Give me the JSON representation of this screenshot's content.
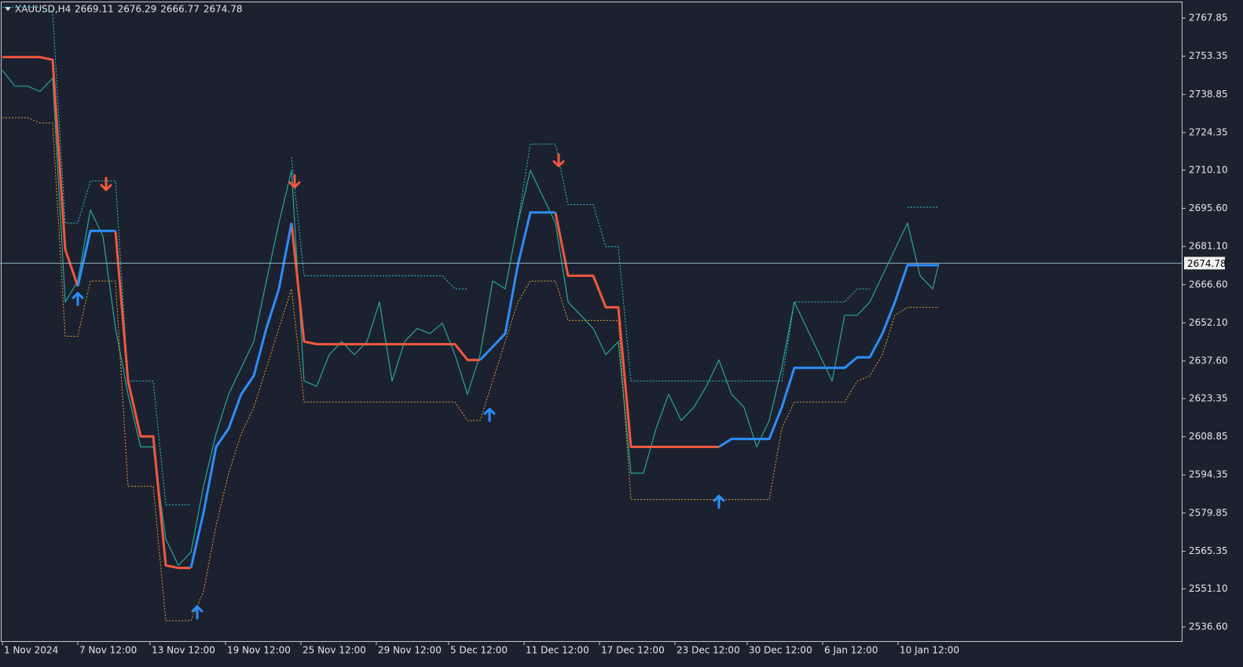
{
  "chart_data": {
    "type": "line",
    "title": "XAUUSD,H4",
    "ohlc": [
      2669.11,
      2676.29,
      2666.77,
      2674.78
    ],
    "x": [
      0,
      4,
      8,
      12,
      16,
      20,
      24,
      28,
      32,
      36,
      40,
      44,
      48,
      52,
      56,
      60,
      64,
      68,
      72,
      76,
      80,
      84,
      88,
      92,
      96,
      100,
      104,
      108,
      112,
      116,
      120,
      124,
      128,
      132,
      136,
      140,
      144,
      148,
      152,
      156,
      160,
      164,
      168,
      172,
      176,
      180,
      184,
      188,
      192,
      196,
      200,
      204,
      208,
      212,
      216,
      220,
      224,
      228,
      232,
      236,
      240,
      244,
      248,
      252,
      256,
      260,
      264,
      268,
      272,
      276,
      280,
      284,
      288,
      292,
      296,
      298
    ],
    "series": [
      {
        "color": "#26a69a",
        "width": 1.2,
        "dash": false,
        "values": [
          2748,
          2742,
          2742,
          2740,
          2745,
          2660,
          2668,
          2695,
          2685,
          2650,
          2625,
          2605,
          2605,
          2570,
          2560,
          2565,
          2590,
          2610,
          2625,
          2635,
          2645,
          2668,
          2690,
          2710,
          2630,
          2628,
          2640,
          2645,
          2640,
          2645,
          2660,
          2630,
          2645,
          2650,
          2648,
          2652,
          2640,
          2625,
          2640,
          2668,
          2665,
          2690,
          2710,
          2700,
          2690,
          2660,
          2655,
          2650,
          2640,
          2645,
          2595,
          2595,
          2612,
          2625,
          2615,
          2620,
          2628,
          2638,
          2625,
          2620,
          2605,
          2615,
          2635,
          2660,
          2650,
          2640,
          2630,
          2655,
          2655,
          2660,
          2670,
          2680,
          2690,
          2670,
          2665,
          2674.78
        ]
      },
      {
        "color": "#2bc7d6",
        "width": 1,
        "dash": true,
        "values": [
          2772,
          2772,
          2772,
          2772,
          2770,
          2690,
          2690,
          2706,
          2706,
          2706,
          2630,
          2630,
          2630,
          2583,
          2583,
          2583,
          null,
          null,
          null,
          null,
          null,
          null,
          null,
          2715,
          2670,
          2670,
          2670,
          2670,
          2670,
          2670,
          2670,
          2670,
          2670,
          2670,
          2670,
          2670,
          2665,
          2665,
          null,
          null,
          null,
          2690,
          2720,
          2720,
          2720,
          2697,
          2697,
          2697,
          2681,
          2681,
          2630,
          2630,
          2630,
          2630,
          2630,
          2630,
          2630,
          2630,
          2630,
          2630,
          2630,
          2630,
          2630,
          2660,
          2660,
          2660,
          2660,
          2660,
          2665,
          2665,
          null,
          null,
          2696,
          2696,
          2696,
          2696
        ]
      },
      {
        "color": "#e0a030",
        "width": 1,
        "dash": true,
        "values": [
          2730,
          2730,
          2730,
          2728,
          2728,
          2647,
          2647,
          2668,
          2668,
          2668,
          2590,
          2590,
          2590,
          2539,
          2539,
          2539,
          2550,
          2575,
          2595,
          2610,
          2620,
          2635,
          2650,
          2665,
          2622,
          2622,
          2622,
          2622,
          2622,
          2622,
          2622,
          2622,
          2622,
          2622,
          2622,
          2622,
          2622,
          2615,
          2615,
          2630,
          2645,
          2660,
          2668,
          2668,
          2668,
          2653,
          2653,
          2653,
          2653,
          2653,
          2585,
          2585,
          2585,
          2585,
          2585,
          2585,
          2585,
          2585,
          2585,
          2585,
          2585,
          2585,
          2612,
          2622,
          2622,
          2622,
          2622,
          2622,
          2630,
          2632,
          2640,
          2655,
          2658,
          2658,
          2658,
          2658
        ]
      },
      {
        "color": "#f0593e",
        "width": 3,
        "dash": false,
        "values": [
          2753,
          2753,
          2753,
          2753,
          2752,
          2680,
          2666,
          null,
          null,
          2687,
          2630,
          2609,
          2609,
          2560,
          2559,
          2559,
          null,
          null,
          null,
          null,
          null,
          null,
          null,
          2690,
          2645,
          2644,
          2644,
          2644,
          2644,
          2644,
          2644,
          2644,
          2644,
          2644,
          2644,
          2644,
          2644,
          2638,
          2638,
          null,
          null,
          null,
          null,
          null,
          2694,
          2670,
          2670,
          2670,
          2658,
          2658,
          2605,
          2605,
          2605,
          2605,
          2605,
          2605,
          2605,
          2605,
          null,
          null,
          null,
          null,
          null,
          null,
          null,
          null,
          null,
          null,
          null,
          null,
          null,
          null,
          null,
          null,
          null,
          null
        ]
      },
      {
        "color": "#2c8ef8",
        "width": 3,
        "dash": false,
        "values": [
          null,
          null,
          null,
          null,
          null,
          null,
          2666,
          2687,
          2687,
          2687,
          null,
          null,
          null,
          null,
          null,
          2559,
          2580,
          2605,
          2612,
          2625,
          2632,
          2650,
          2665,
          2690,
          null,
          null,
          null,
          null,
          null,
          null,
          null,
          null,
          null,
          null,
          null,
          null,
          null,
          null,
          2638,
          2643,
          2648,
          2674,
          2694,
          2694,
          2694,
          null,
          null,
          null,
          null,
          null,
          null,
          null,
          null,
          null,
          null,
          null,
          null,
          2605,
          2608,
          2608,
          2608,
          2608,
          2620,
          2635,
          2635,
          2635,
          2635,
          2635,
          2639,
          2639,
          2648,
          2660,
          2674,
          2674,
          2674,
          2674
        ]
      }
    ],
    "signals": [
      {
        "x": 24,
        "value": 2661,
        "direction": "up",
        "color": "#2c8ef8"
      },
      {
        "x": 33,
        "value": 2705,
        "direction": "down",
        "color": "#f0593e"
      },
      {
        "x": 62,
        "value": 2542,
        "direction": "up",
        "color": "#2c8ef8"
      },
      {
        "x": 93,
        "value": 2706,
        "direction": "down",
        "color": "#f0593e"
      },
      {
        "x": 155,
        "value": 2617,
        "direction": "up",
        "color": "#2c8ef8"
      },
      {
        "x": 177,
        "value": 2714,
        "direction": "down",
        "color": "#f0593e"
      },
      {
        "x": 228,
        "value": 2584,
        "direction": "up",
        "color": "#2c8ef8"
      }
    ],
    "xlim": [
      -0.75,
      375.5
    ],
    "ylim": [
      2530.94,
      2774.11
    ],
    "xticks": [
      {
        "value": 0,
        "label": "1 Nov 2024"
      },
      {
        "value": 24,
        "label": "7 Nov 12:00"
      },
      {
        "value": 47,
        "label": "13 Nov 12:00"
      },
      {
        "value": 71,
        "label": "19 Nov 12:00"
      },
      {
        "value": 95,
        "label": "25 Nov 12:00"
      },
      {
        "value": 119,
        "label": "29 Nov 12:00"
      },
      {
        "value": 142,
        "label": "5 Dec 12:00"
      },
      {
        "value": 166,
        "label": "11 Dec 12:00"
      },
      {
        "value": 190,
        "label": "17 Dec 12:00"
      },
      {
        "value": 214,
        "label": "23 Dec 12:00"
      },
      {
        "value": 237,
        "label": "30 Dec 12:00"
      },
      {
        "value": 261,
        "label": "6 Jan 12:00"
      },
      {
        "value": 285,
        "label": "10 Jan 12:00"
      }
    ],
    "yticks": [
      2767.85,
      2753.35,
      2738.85,
      2724.35,
      {
        "value": 2710.1,
        "label": "2710.10"
      },
      {
        "value": 2695.6,
        "label": "2695.60"
      },
      {
        "value": 2681.1,
        "label": "2681.10"
      },
      {
        "value": 2666.6,
        "label": "2666.60"
      },
      {
        "value": 2652.1,
        "label": "2652.10"
      },
      {
        "value": 2637.6,
        "label": "2637.60"
      },
      2623.35,
      2608.85,
      2594.35,
      2579.85,
      2565.35,
      {
        "value": 2551.1,
        "label": "2551.10"
      },
      {
        "value": 2536.6,
        "label": "2536.60"
      }
    ],
    "price_line_color": "#8fb0c0"
  }
}
